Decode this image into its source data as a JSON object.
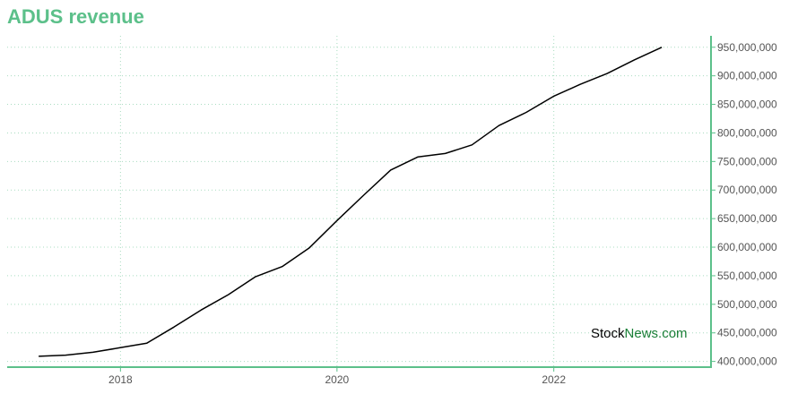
{
  "page": {
    "title": "ADUS revenue"
  },
  "watermark": {
    "part1": "Stock",
    "part2": "News.com"
  },
  "colors": {
    "title": "#5cc08a",
    "axis": "#5cc08a",
    "grid": "#a8dcc0",
    "line": "#000000",
    "watermark_accent": "#1a7f37"
  },
  "chart_data": {
    "type": "line",
    "title": "ADUS revenue",
    "xlabel": "",
    "ylabel": "",
    "x_tick_labels": [
      "2018",
      "2020",
      "2022"
    ],
    "y_tick_labels": [
      "400,000,000",
      "450,000,000",
      "500,000,000",
      "550,000,000",
      "600,000,000",
      "650,000,000",
      "700,000,000",
      "750,000,000",
      "800,000,000",
      "850,000,000",
      "900,000,000",
      "950,000,000"
    ],
    "ylim": [
      390000000,
      970000000
    ],
    "xlim": [
      "2016-12-15",
      "2023-06-15"
    ],
    "grid": true,
    "y_axis_side": "right",
    "series": [
      {
        "x": [
          "2017-03-31",
          "2017-06-30",
          "2017-09-30",
          "2017-12-31",
          "2018-03-31",
          "2018-06-30",
          "2018-09-30",
          "2018-12-31",
          "2019-03-31",
          "2019-06-30",
          "2019-09-30",
          "2019-12-31",
          "2020-03-31",
          "2020-06-30",
          "2020-09-30",
          "2020-12-31",
          "2021-03-31",
          "2021-06-30",
          "2021-09-30",
          "2021-12-31",
          "2022-03-31",
          "2022-06-30",
          "2022-09-30",
          "2022-12-31"
        ],
        "y": [
          409000000,
          411000000,
          416000000,
          424000000,
          432000000,
          460000000,
          490000000,
          517000000,
          548000000,
          566000000,
          599000000,
          646000000,
          691000000,
          735000000,
          758000000,
          764000000,
          779000000,
          813000000,
          836000000,
          864000000,
          885000000,
          904000000,
          928000000,
          950000000
        ]
      }
    ]
  }
}
